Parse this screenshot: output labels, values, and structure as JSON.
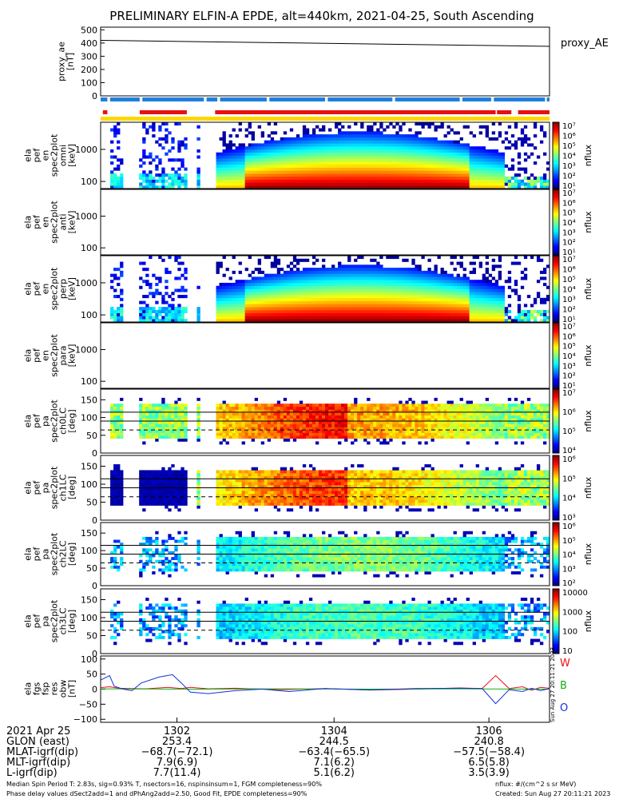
{
  "title": "PRELIMINARY ELFIN-A EPDE, alt=440km, 2021-04-25, South Ascending",
  "colors": {
    "bar_blue": "#1f7fe0",
    "bar_red": "#e81010",
    "bar_yellow": "#ffd700",
    "line_w": "#e81010",
    "line_b": "#10b010",
    "line_o": "#1030e0"
  },
  "chart_data": [
    {
      "type": "line",
      "name": "proxy_ae",
      "ylabel": [
        "proxy_ae",
        "[nT]"
      ],
      "ylim": [
        0,
        520
      ],
      "yticks": [
        "500",
        "400",
        "300",
        "200",
        "100",
        "0"
      ],
      "ytick_values": [
        500,
        400,
        300,
        200,
        100,
        0
      ],
      "legend": "proxy_AE",
      "series": [
        {
          "x": [
            0,
            1
          ],
          "y": [
            420,
            375
          ]
        }
      ]
    },
    {
      "type": "heatmap",
      "name": "omni",
      "ylabel": [
        "ela",
        "pef",
        "en",
        "spec2plot",
        "omni",
        "[keV]"
      ],
      "scale": "log",
      "ylim": [
        60,
        7000
      ],
      "yticks": [
        "1000",
        "100"
      ],
      "ytick_values": [
        1000,
        100
      ],
      "colorbar": {
        "label": "nflux",
        "ticks": [
          "10⁷",
          "10⁶",
          "10⁵",
          "10⁴",
          "10³",
          "10²",
          "10¹"
        ]
      }
    },
    {
      "type": "heatmap",
      "name": "anti",
      "ylabel": [
        "ela",
        "pef",
        "en",
        "spec2plot",
        "anti",
        "[keV]"
      ],
      "scale": "log",
      "ylim": [
        60,
        7000
      ],
      "yticks": [
        "1000",
        "100"
      ],
      "ytick_values": [
        1000,
        100
      ],
      "colorbar": {
        "label": "nflux",
        "ticks": [
          "10⁷",
          "10⁶",
          "10⁵",
          "10⁴",
          "10³",
          "10²",
          "10¹"
        ]
      }
    },
    {
      "type": "heatmap",
      "name": "perp",
      "ylabel": [
        "ela",
        "pef",
        "en",
        "spec2plot",
        "perp",
        "[keV]"
      ],
      "scale": "log",
      "ylim": [
        60,
        7000
      ],
      "yticks": [
        "1000",
        "100"
      ],
      "ytick_values": [
        1000,
        100
      ],
      "colorbar": {
        "label": "nflux",
        "ticks": [
          "10⁷",
          "10⁶",
          "10⁵",
          "10⁴",
          "10³",
          "10²",
          "10¹"
        ]
      }
    },
    {
      "type": "heatmap",
      "name": "para",
      "ylabel": [
        "ela",
        "pef",
        "en",
        "spec2plot",
        "para",
        "[keV]"
      ],
      "scale": "log",
      "ylim": [
        60,
        7000
      ],
      "yticks": [
        "1000",
        "100"
      ],
      "ytick_values": [
        1000,
        100
      ],
      "colorbar": {
        "label": "nflux",
        "ticks": [
          "10⁷",
          "10⁶",
          "10⁵",
          "10⁴",
          "10³",
          "10²",
          "10¹"
        ]
      }
    },
    {
      "type": "heatmap",
      "name": "ch0LC",
      "ylabel": [
        "ela",
        "pef",
        "pa",
        "spec2plot",
        "ch0LC",
        "[deg]"
      ],
      "scale": "linear",
      "ylim": [
        0,
        180
      ],
      "yticks": [
        "150",
        "100",
        "50",
        "0"
      ],
      "ytick_values": [
        150,
        100,
        50,
        0
      ],
      "hlines": [
        {
          "y": 90,
          "style": "solid"
        },
        {
          "y": 115,
          "style": "solid"
        },
        {
          "y": 65,
          "style": "dashed"
        }
      ],
      "colorbar": {
        "label": "nflux",
        "ticks": [
          "10⁷",
          "10⁶",
          "10⁵",
          "10⁴"
        ]
      }
    },
    {
      "type": "heatmap",
      "name": "ch1LC",
      "ylabel": [
        "ela",
        "pef",
        "pa",
        "spec2plot",
        "ch1LC",
        "[deg]"
      ],
      "scale": "linear",
      "ylim": [
        0,
        180
      ],
      "yticks": [
        "150",
        "100",
        "50",
        "0"
      ],
      "ytick_values": [
        150,
        100,
        50,
        0
      ],
      "hlines": [
        {
          "y": 90,
          "style": "solid"
        },
        {
          "y": 115,
          "style": "solid"
        },
        {
          "y": 65,
          "style": "dashed"
        }
      ],
      "colorbar": {
        "label": "nflux",
        "ticks": [
          "10⁶",
          "10⁵",
          "10⁴",
          "10³"
        ]
      }
    },
    {
      "type": "heatmap",
      "name": "ch2LC",
      "ylabel": [
        "ela",
        "pef",
        "pa",
        "spec2plot",
        "ch2LC",
        "[deg]"
      ],
      "scale": "linear",
      "ylim": [
        0,
        180
      ],
      "yticks": [
        "150",
        "100",
        "50",
        "0"
      ],
      "ytick_values": [
        150,
        100,
        50,
        0
      ],
      "hlines": [
        {
          "y": 90,
          "style": "solid"
        },
        {
          "y": 115,
          "style": "solid"
        },
        {
          "y": 65,
          "style": "dashed"
        }
      ],
      "colorbar": {
        "label": "nflux",
        "ticks": [
          "10⁶",
          "10⁵",
          "10⁴",
          "10³",
          "10²"
        ]
      }
    },
    {
      "type": "heatmap",
      "name": "ch3LC",
      "ylabel": [
        "ela",
        "pef",
        "pa",
        "spec2plot",
        "ch3LC",
        "[deg]"
      ],
      "scale": "linear",
      "ylim": [
        0,
        180
      ],
      "yticks": [
        "150",
        "100",
        "50",
        "0"
      ],
      "ytick_values": [
        150,
        100,
        50,
        0
      ],
      "hlines": [
        {
          "y": 90,
          "style": "solid"
        },
        {
          "y": 115,
          "style": "solid"
        },
        {
          "y": 65,
          "style": "dashed"
        }
      ],
      "colorbar": {
        "label": "nflux",
        "ticks": [
          "10000",
          "1000",
          "100",
          "10"
        ]
      }
    },
    {
      "type": "line",
      "name": "fgs",
      "ylabel": [
        "ela",
        "fgs",
        "fsp",
        "res",
        "obw",
        "[nT]"
      ],
      "ylim": [
        -110,
        110
      ],
      "yticks": [
        "100",
        "50",
        "0",
        "−50",
        "−100"
      ],
      "ytick_values": [
        100,
        50,
        0,
        -50,
        -100
      ],
      "legend_labels": [
        "W",
        "B",
        "O"
      ],
      "side_label": "Sun Aug 27 20:11:21 2023",
      "series": [
        {
          "name": "W",
          "color_key": "line_w",
          "x": [
            0,
            0.02,
            0.04,
            0.07,
            0.1,
            0.15,
            0.18,
            0.2,
            0.24,
            0.3,
            0.4,
            0.5,
            0.6,
            0.7,
            0.8,
            0.85,
            0.88,
            0.91,
            0.94,
            0.96,
            0.98,
            1.0
          ],
          "y": [
            5,
            8,
            3,
            2,
            1,
            6,
            2,
            6,
            1,
            3,
            -2,
            2,
            -3,
            0,
            4,
            2,
            45,
            2,
            8,
            -4,
            6,
            3
          ]
        },
        {
          "name": "B",
          "color_key": "line_b",
          "x": [
            0,
            0.2,
            0.4,
            0.6,
            0.8,
            1.0
          ],
          "y": [
            1,
            0,
            1,
            0,
            1,
            0
          ]
        },
        {
          "name": "O",
          "color_key": "line_o",
          "x": [
            0,
            0.02,
            0.03,
            0.05,
            0.07,
            0.09,
            0.13,
            0.16,
            0.18,
            0.2,
            0.24,
            0.3,
            0.36,
            0.42,
            0.5,
            0.6,
            0.7,
            0.8,
            0.85,
            0.88,
            0.91,
            0.94,
            0.96,
            0.98,
            1.0
          ],
          "y": [
            30,
            45,
            10,
            0,
            -5,
            20,
            40,
            48,
            20,
            -10,
            -15,
            -5,
            0,
            -8,
            2,
            -3,
            2,
            3,
            2,
            -48,
            -2,
            -8,
            3,
            -5,
            2
          ]
        }
      ]
    }
  ],
  "x_axis": {
    "labels": [
      "2021 Apr 25",
      "GLON (east)",
      "MLAT-igrf(dip)",
      "MLT-igrf(dip)",
      "L-igrf(dip)"
    ],
    "ticks": [
      {
        "time": "1302",
        "glon": "253.4",
        "mlat": "−68.7(−72.1)",
        "mlt": "7.9(6.9)",
        "l": "7.7(11.4)"
      },
      {
        "time": "1304",
        "glon": "244.5",
        "mlat": "−63.4(−65.5)",
        "mlt": "7.1(6.2)",
        "l": "5.1(6.2)"
      },
      {
        "time": "1306",
        "glon": "240.8",
        "mlat": "−57.5(−58.4)",
        "mlt": "6.5(5.8)",
        "l": "3.5(3.9)"
      }
    ]
  },
  "footer": {
    "line1_left": "Median Spin Period T: 2.83s, sig=0.93% T, nsectors=16, nspinsinsum=1, FGM completeness=90%",
    "line2_left": "Phase delay values dSect2add=1 and dPhAng2add=2.50, Good Fit, EPDE completeness=90%",
    "line1_right": "nflux: #/(cm^2 s sr MeV)",
    "line2_right": "Created: Sun Aug 27 20:11:21 2023"
  }
}
